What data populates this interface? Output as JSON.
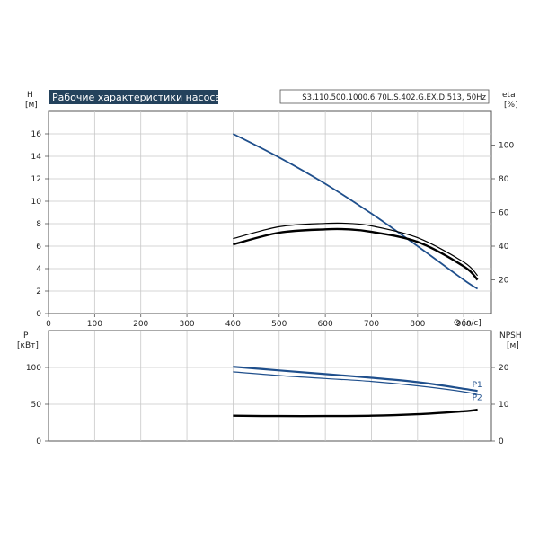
{
  "chart_data": [
    {
      "type": "line",
      "title": "Рабочие характеристики насоса",
      "subtitle": "S3.110.500.1000.6.70L.S.402.G.EX.D.513, 50Hz",
      "xlabel": "Q [л/с]",
      "ylabel": "H\n[м]",
      "y2label": "eta\n[%]",
      "xlim": [
        0,
        960
      ],
      "ylim": [
        0,
        18
      ],
      "y2lim": [
        0,
        120
      ],
      "x_ticks": [
        "0",
        "100",
        "200",
        "300",
        "400",
        "500",
        "600",
        "700",
        "800",
        "900"
      ],
      "y_ticks": [
        "0",
        "2",
        "4",
        "6",
        "8",
        "10",
        "12",
        "14",
        "16"
      ],
      "y2_ticks": [
        "20",
        "40",
        "60",
        "80",
        "100"
      ],
      "grid": true,
      "colors": {
        "head": "#1f4f8c",
        "efficiency": "#000000"
      },
      "series": [
        {
          "axis": "left",
          "color": "#1f4f8c",
          "x": [
            400,
            500,
            600,
            700,
            800,
            900,
            930
          ],
          "y": [
            16.0,
            13.9,
            11.55,
            8.9,
            6.0,
            3.0,
            2.2
          ]
        },
        {
          "axis": "right",
          "color": "#000000",
          "x": [
            400,
            500,
            600,
            650,
            700,
            800,
            900,
            930
          ],
          "y": [
            44.5,
            51.5,
            53.5,
            53.5,
            52.0,
            45.0,
            30.5,
            22.5
          ]
        },
        {
          "axis": "right",
          "color": "#000000",
          "x": [
            400,
            500,
            600,
            650,
            700,
            800,
            900,
            930
          ],
          "y": [
            41.0,
            48.0,
            50.0,
            50.0,
            48.5,
            42.5,
            28.0,
            20.0
          ]
        }
      ]
    },
    {
      "type": "line",
      "xlabel": "",
      "ylabel": "P\n[кВт]",
      "y2label": "NPSH\n[м]",
      "xlim": [
        0,
        960
      ],
      "ylim": [
        0,
        150
      ],
      "y2lim": [
        0,
        30
      ],
      "y_ticks": [
        "0",
        "50",
        "100"
      ],
      "y2_ticks": [
        "0",
        "10",
        "20"
      ],
      "grid": true,
      "colors": {
        "power": "#1f4f8c",
        "npsh": "#000000"
      },
      "series": [
        {
          "name": "P1",
          "axis": "left",
          "color": "#1f4f8c",
          "x": [
            400,
            500,
            600,
            700,
            800,
            900,
            930
          ],
          "y": [
            101,
            96,
            91,
            86,
            80,
            71,
            68
          ]
        },
        {
          "name": "P2",
          "axis": "left",
          "color": "#1f4f8c",
          "x": [
            400,
            500,
            600,
            700,
            800,
            900,
            930
          ],
          "y": [
            94,
            89,
            85,
            81,
            75,
            67,
            63
          ]
        },
        {
          "axis": "right",
          "color": "#000000",
          "x": [
            400,
            500,
            600,
            700,
            800,
            900,
            930
          ],
          "y": [
            6.9,
            6.8,
            6.8,
            6.9,
            7.3,
            8.1,
            8.5
          ]
        }
      ]
    }
  ]
}
